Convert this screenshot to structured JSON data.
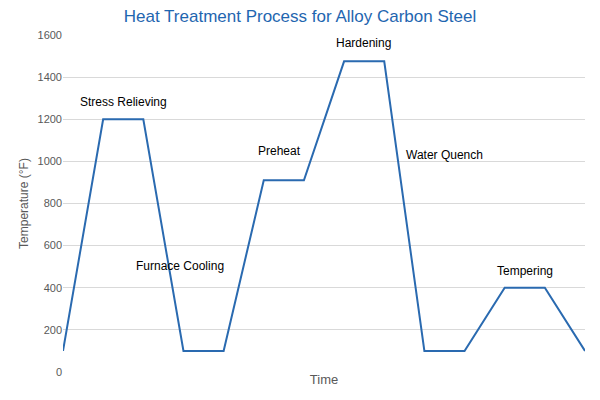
{
  "chart_data": {
    "type": "line",
    "title": "Heat Treatment Process for Alloy Carbon Steel",
    "x_label": "Time",
    "y_label": "Temperature (°F)",
    "x": [
      0,
      1,
      2,
      3,
      4,
      5,
      6,
      7,
      8,
      9,
      10,
      11,
      12,
      13
    ],
    "values": [
      100,
      1200,
      1200,
      100,
      100,
      910,
      910,
      1475,
      1475,
      100,
      100,
      400,
      400,
      100
    ],
    "color": "#2a6ab0",
    "xlim": [
      0,
      13
    ],
    "ylim": [
      0,
      1600
    ],
    "yticks": [
      0,
      200,
      400,
      600,
      800,
      1000,
      1200,
      1400,
      1600
    ],
    "grid": true,
    "tick_labels": "y",
    "annotations": [
      "Stress Relieving",
      "Furnace Cooling",
      "Preheat",
      "Hardening",
      "Water Quench",
      "Tempering"
    ]
  }
}
